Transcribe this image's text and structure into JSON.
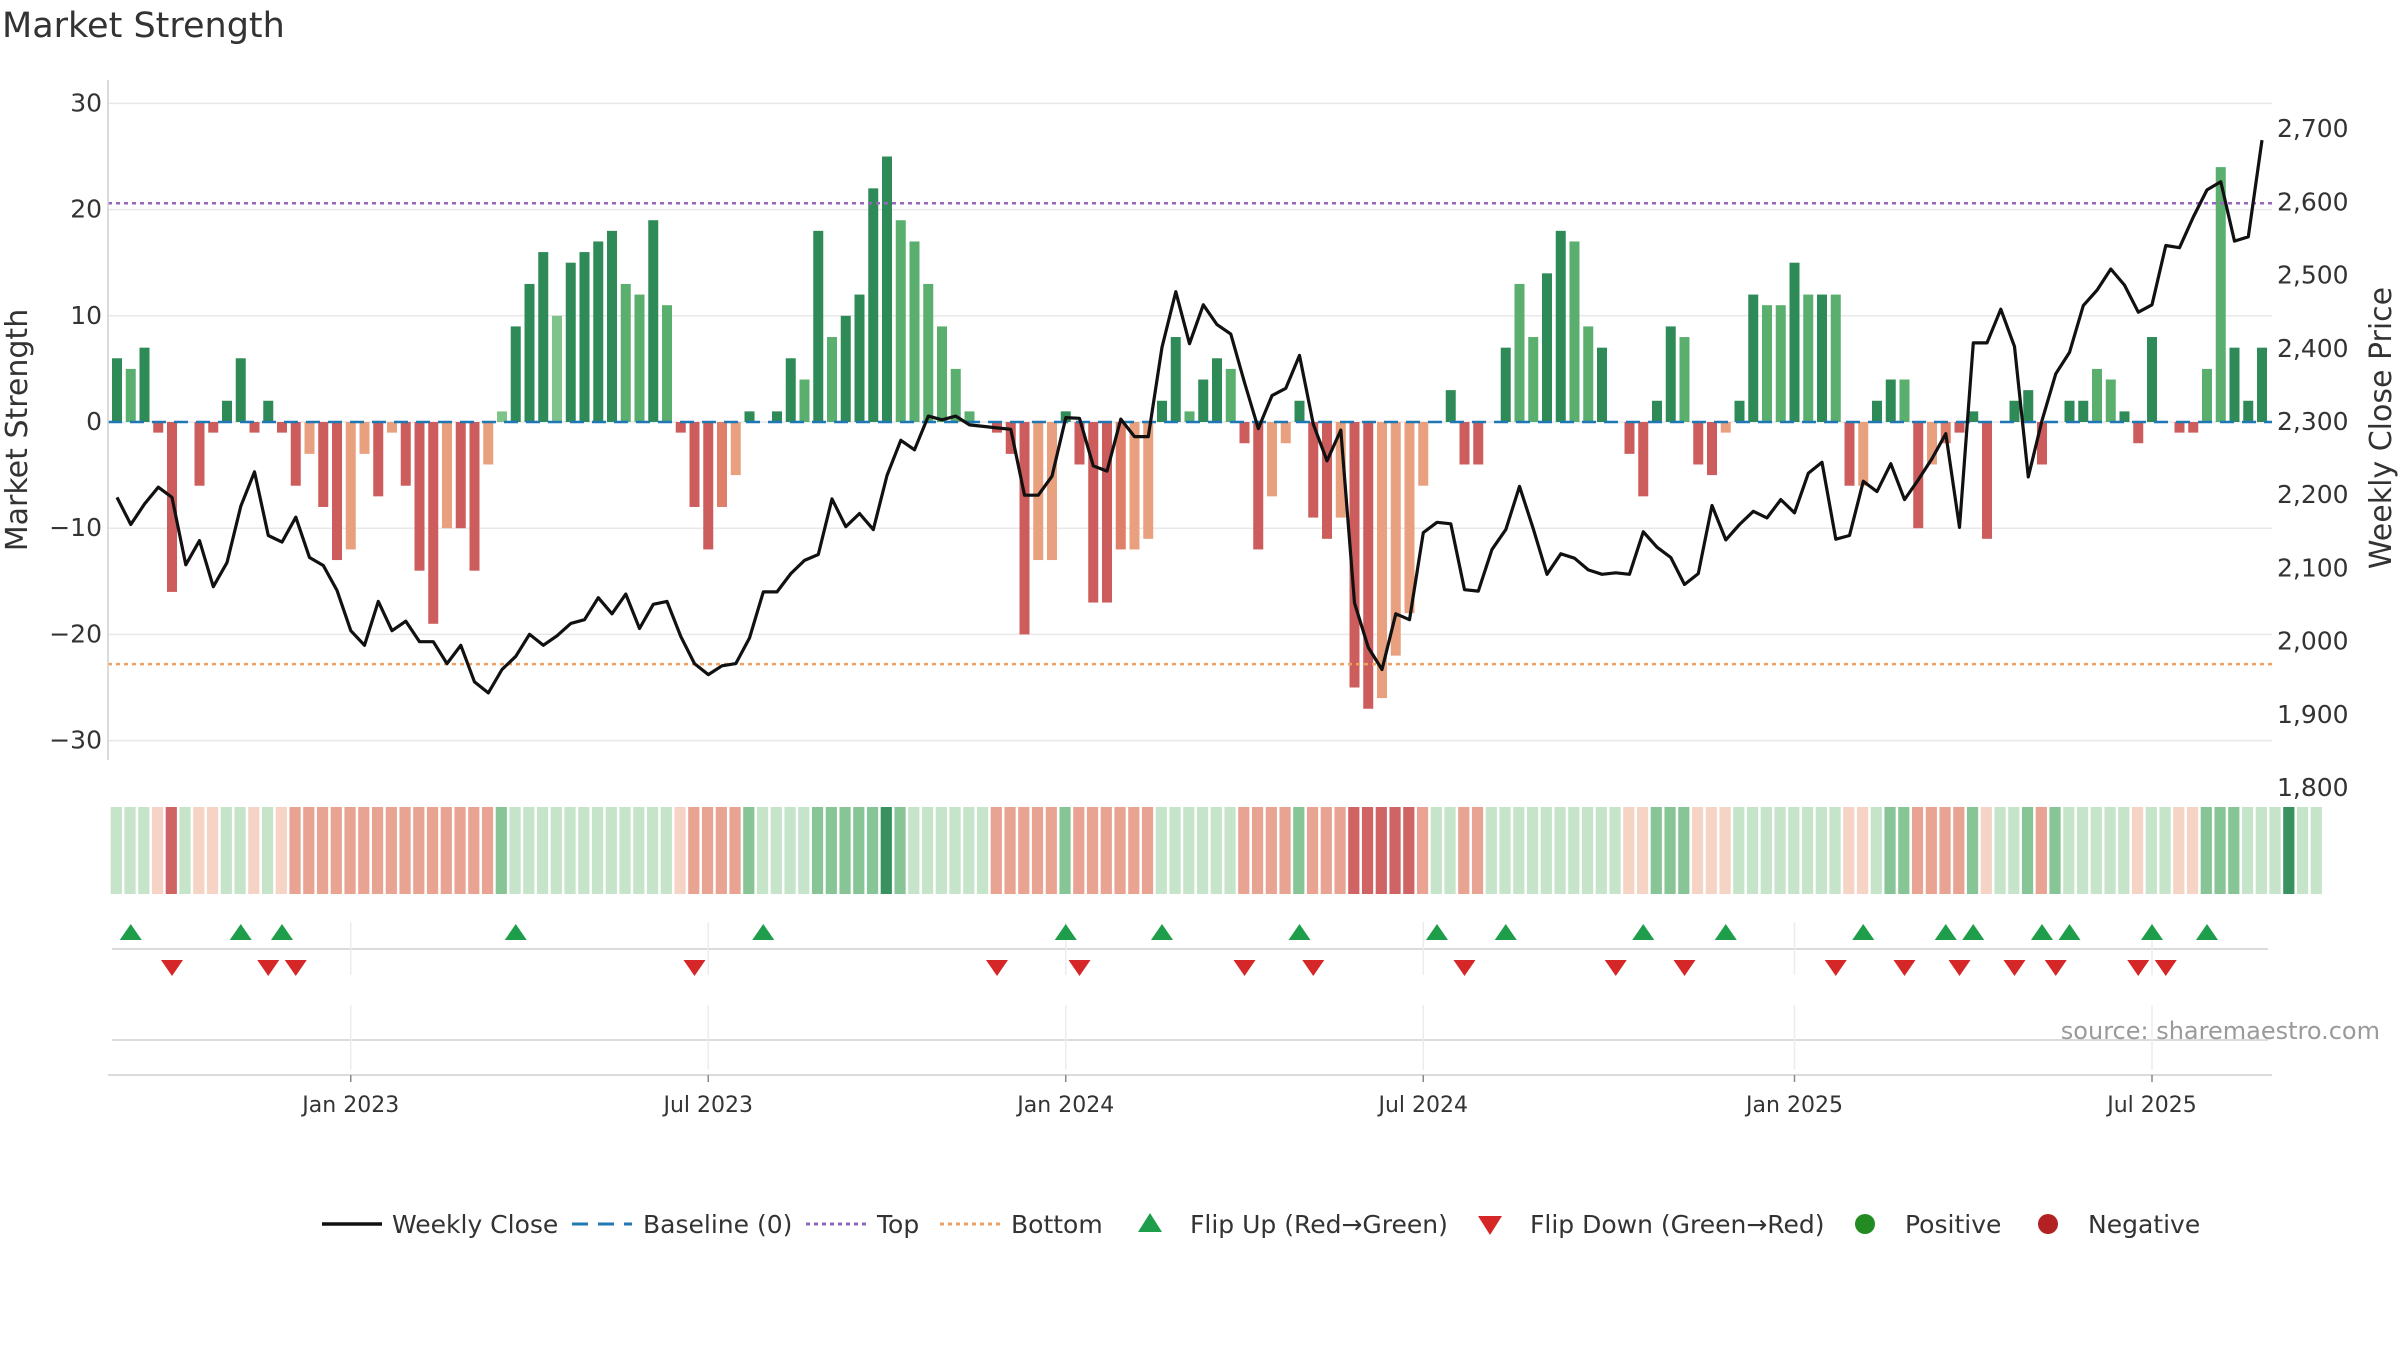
{
  "chart_data": {
    "type": "bar",
    "title": "Market Strength",
    "ylabel": "Market Strength",
    "y2label": "Weekly Close Price",
    "ylim": [
      -32,
      33
    ],
    "y2lim": [
      1790,
      2720
    ],
    "yticks": [
      30,
      20,
      10,
      0,
      -10,
      -20,
      -30
    ],
    "ytick_labels": [
      "30",
      "20",
      "10",
      "0",
      "−10",
      "−20",
      "−30"
    ],
    "y2ticks": [
      2700,
      2600,
      2500,
      2400,
      2300,
      2200,
      2100,
      2000,
      1900,
      1800
    ],
    "y2tick_labels": [
      "2,700",
      "2,600",
      "2,500",
      "2,400",
      "2,300",
      "2,200",
      "2,100",
      "2,000",
      "1,900",
      "1,800"
    ],
    "x_axis": {
      "start": "2022-09-05",
      "end": "2025-09-05",
      "ticks": [
        {
          "label": "Jan 2023",
          "week": 17
        },
        {
          "label": "Jul 2023",
          "week": 43
        },
        {
          "label": "Jan 2024",
          "week": 69
        },
        {
          "label": "Jul 2024",
          "week": 95
        },
        {
          "label": "Jan 2025",
          "week": 122
        },
        {
          "label": "Jul 2025",
          "week": 148
        }
      ]
    },
    "top_line": 20.6,
    "bottom_line": -22.8,
    "series": [
      {
        "name": "Market Strength",
        "type": "bar",
        "values": [
          6,
          5,
          7,
          -1,
          -16,
          0,
          -6,
          -1,
          2,
          6,
          -1,
          2,
          -1,
          -6,
          -3,
          -8,
          -13,
          -12,
          -3,
          -7,
          -1,
          -6,
          -14,
          -19,
          -10,
          -10,
          -14,
          -4,
          1,
          9,
          13,
          16,
          10,
          15,
          16,
          17,
          18,
          13,
          12,
          19,
          11,
          -1,
          -8,
          -12,
          -8,
          -5,
          1,
          0,
          1,
          6,
          4,
          18,
          8,
          10,
          12,
          22,
          25,
          19,
          17,
          13,
          9,
          5,
          1,
          0,
          -1,
          -3,
          -20,
          -13,
          -13,
          1,
          -4,
          -17,
          -17,
          -12,
          -12,
          -11,
          2,
          8,
          1,
          4,
          6,
          5,
          -2,
          -12,
          -7,
          -2,
          2,
          -9,
          -11,
          -9,
          -25,
          -27,
          -26,
          -22,
          -18,
          -6,
          0,
          3,
          -4,
          -4,
          0,
          7,
          13,
          8,
          14,
          18,
          17,
          9,
          7,
          0,
          -3,
          -7,
          2,
          9,
          8,
          -4,
          -5,
          -1,
          2,
          12,
          11,
          11,
          15,
          12,
          12,
          12,
          -6,
          -6,
          2,
          4,
          4,
          -10,
          -4,
          -2,
          -1,
          1,
          -11,
          0,
          2,
          3,
          -4,
          0,
          2,
          2,
          5,
          4,
          1,
          -2,
          8,
          0,
          -1,
          -1,
          5,
          24,
          7,
          2,
          7
        ],
        "shade": [
          "d",
          "m",
          "d",
          "d",
          "d",
          "d",
          "d",
          "d",
          "d",
          "d",
          "d",
          "d",
          "d",
          "d",
          "l",
          "d",
          "d",
          "l",
          "l",
          "d",
          "l",
          "d",
          "d",
          "d",
          "l",
          "d",
          "d",
          "l",
          "l",
          "d",
          "d",
          "d",
          "l",
          "d",
          "d",
          "d",
          "d",
          "m",
          "m",
          "d",
          "m",
          "d",
          "d",
          "d",
          "m",
          "l",
          "d",
          "l",
          "d",
          "d",
          "m",
          "d",
          "m",
          "d",
          "d",
          "d",
          "d",
          "m",
          "m",
          "m",
          "m",
          "m",
          "m",
          "m",
          "d",
          "d",
          "d",
          "l",
          "l",
          "d",
          "d",
          "d",
          "d",
          "m",
          "l",
          "l",
          "d",
          "d",
          "m",
          "d",
          "d",
          "m",
          "d",
          "d",
          "l",
          "l",
          "d",
          "d",
          "d",
          "l",
          "d",
          "d",
          "l",
          "l",
          "l",
          "l",
          "l",
          "d",
          "d",
          "d",
          "d",
          "d",
          "m",
          "m",
          "d",
          "d",
          "m",
          "m",
          "d",
          "d",
          "d",
          "d",
          "d",
          "d",
          "m",
          "d",
          "d",
          "l",
          "d",
          "d",
          "m",
          "m",
          "d",
          "m",
          "d",
          "m",
          "d",
          "l",
          "d",
          "d",
          "m",
          "d",
          "l",
          "m",
          "d",
          "d",
          "d",
          "d",
          "d",
          "d",
          "d",
          "m",
          "d",
          "d",
          "m",
          "m",
          "d",
          "d",
          "d",
          "d",
          "d",
          "d",
          "m",
          "m",
          "d"
        ]
      },
      {
        "name": "Weekly Close",
        "axis": "right",
        "values": [
          2197,
          2160,
          2188,
          2211,
          2197,
          2105,
          2138,
          2075,
          2108,
          2185,
          2232,
          2145,
          2136,
          2170,
          2115,
          2104,
          2070,
          2015,
          1995,
          2055,
          2015,
          2028,
          2000,
          2000,
          1970,
          1995,
          1945,
          1930,
          1962,
          1980,
          2010,
          1995,
          2008,
          2025,
          2030,
          2060,
          2038,
          2065,
          2018,
          2051,
          2055,
          2007,
          1970,
          1955,
          1967,
          1970,
          2005,
          2068,
          2068,
          2093,
          2111,
          2119,
          2195,
          2157,
          2175,
          2153,
          2227,
          2275,
          2262,
          2308,
          2303,
          2308,
          2296,
          2294,
          2292,
          2290,
          2200,
          2200,
          2226,
          2306,
          2305,
          2240,
          2233,
          2304,
          2280,
          2280,
          2402,
          2478,
          2407,
          2460,
          2433,
          2420,
          2354,
          2291,
          2336,
          2346,
          2391,
          2297,
          2247,
          2289,
          2053,
          1992,
          1962,
          2038,
          2030,
          2149,
          2163,
          2161,
          2071,
          2069,
          2126,
          2153,
          2212,
          2154,
          2092,
          2120,
          2114,
          2098,
          2092,
          2094,
          2092,
          2150,
          2129,
          2115,
          2078,
          2093,
          2186,
          2139,
          2160,
          2178,
          2169,
          2194,
          2176,
          2230,
          2245,
          2140,
          2145,
          2219,
          2205,
          2243,
          2194,
          2221,
          2250,
          2284,
          2156,
          2408,
          2408,
          2454,
          2403,
          2225,
          2302,
          2366,
          2395,
          2459,
          2480,
          2509,
          2487,
          2450,
          2460,
          2541,
          2538,
          2580,
          2617,
          2628,
          2547,
          2553,
          2685
        ]
      }
    ],
    "band_colors": [
      "l",
      "l",
      "l",
      "l",
      "d",
      "l",
      "l",
      "l",
      "l",
      "l",
      "l",
      "l",
      "l",
      "m",
      "m",
      "m",
      "m",
      "m",
      "m",
      "m",
      "m",
      "m",
      "m",
      "m",
      "m",
      "m",
      "m",
      "m",
      "m",
      "l",
      "l",
      "l",
      "l",
      "l",
      "l",
      "l",
      "l",
      "l",
      "l",
      "l",
      "l",
      "l",
      "m",
      "m",
      "m",
      "m",
      "m",
      "l",
      "l",
      "l",
      "l",
      "m",
      "m",
      "m",
      "m",
      "m",
      "d",
      "m",
      "l",
      "l",
      "l",
      "l",
      "l",
      "l",
      "m",
      "m",
      "m",
      "m",
      "m",
      "m",
      "m",
      "m",
      "m",
      "m",
      "m",
      "m",
      "l",
      "l",
      "l",
      "l",
      "l",
      "l",
      "m",
      "m",
      "m",
      "m",
      "m",
      "m",
      "m",
      "m",
      "d",
      "d",
      "d",
      "d",
      "d",
      "m",
      "l",
      "l",
      "m",
      "m",
      "l",
      "l",
      "l",
      "l",
      "l",
      "l",
      "l",
      "l",
      "l",
      "l",
      "l",
      "l",
      "m",
      "m",
      "m",
      "l",
      "l",
      "l",
      "l",
      "l",
      "l",
      "l",
      "l",
      "l",
      "l",
      "l",
      "l",
      "l",
      "l",
      "m",
      "m",
      "m",
      "m",
      "m",
      "m",
      "m",
      "l",
      "l",
      "l",
      "m",
      "m",
      "m",
      "l",
      "l",
      "l",
      "l",
      "l",
      "l",
      "l",
      "l",
      "l",
      "l",
      "m",
      "m",
      "m",
      "l",
      "l",
      "l",
      "d",
      "l",
      "l"
    ],
    "flip_up_weeks": [
      1,
      9,
      12,
      29,
      47,
      69,
      76,
      86,
      96,
      101,
      111,
      117,
      127,
      133,
      135,
      140,
      142,
      148,
      152
    ],
    "flip_down_weeks": [
      4,
      11,
      13,
      42,
      64,
      70,
      82,
      87,
      98,
      109,
      114,
      125,
      130,
      134,
      138,
      141,
      147,
      149
    ],
    "legend": [
      {
        "label": "Weekly Close",
        "kind": "solid-line"
      },
      {
        "label": "Baseline (0)",
        "kind": "dash-line"
      },
      {
        "label": "Top",
        "kind": "dot-line"
      },
      {
        "label": "Bottom",
        "kind": "dot-line"
      },
      {
        "label": "Flip Up (Red→Green)",
        "kind": "triangle-up"
      },
      {
        "label": "Flip Down (Green→Red)",
        "kind": "triangle-down"
      },
      {
        "label": "Positive",
        "kind": "circle"
      },
      {
        "label": "Negative",
        "kind": "circle"
      }
    ],
    "legend_position": "bottom-center",
    "source": "source: sharemaestro.com"
  },
  "colors": {
    "pos_dark": "#2e8b57",
    "pos_mid": "#5aae6e",
    "pos_light": "#7ec48a",
    "neg_dark": "#cd5c5c",
    "neg_mid": "#df7f6a",
    "neg_light": "#e9a07f",
    "price": "#111111",
    "baseline": "#1f77b4",
    "top": "#9467bd",
    "bottom": "#f0a060",
    "flip_up": "#1e9e4a",
    "flip_down": "#d62728",
    "positive_dot": "#228b22",
    "negative_dot": "#b22222",
    "grid": "#e8e8e8",
    "text": "#333333"
  }
}
